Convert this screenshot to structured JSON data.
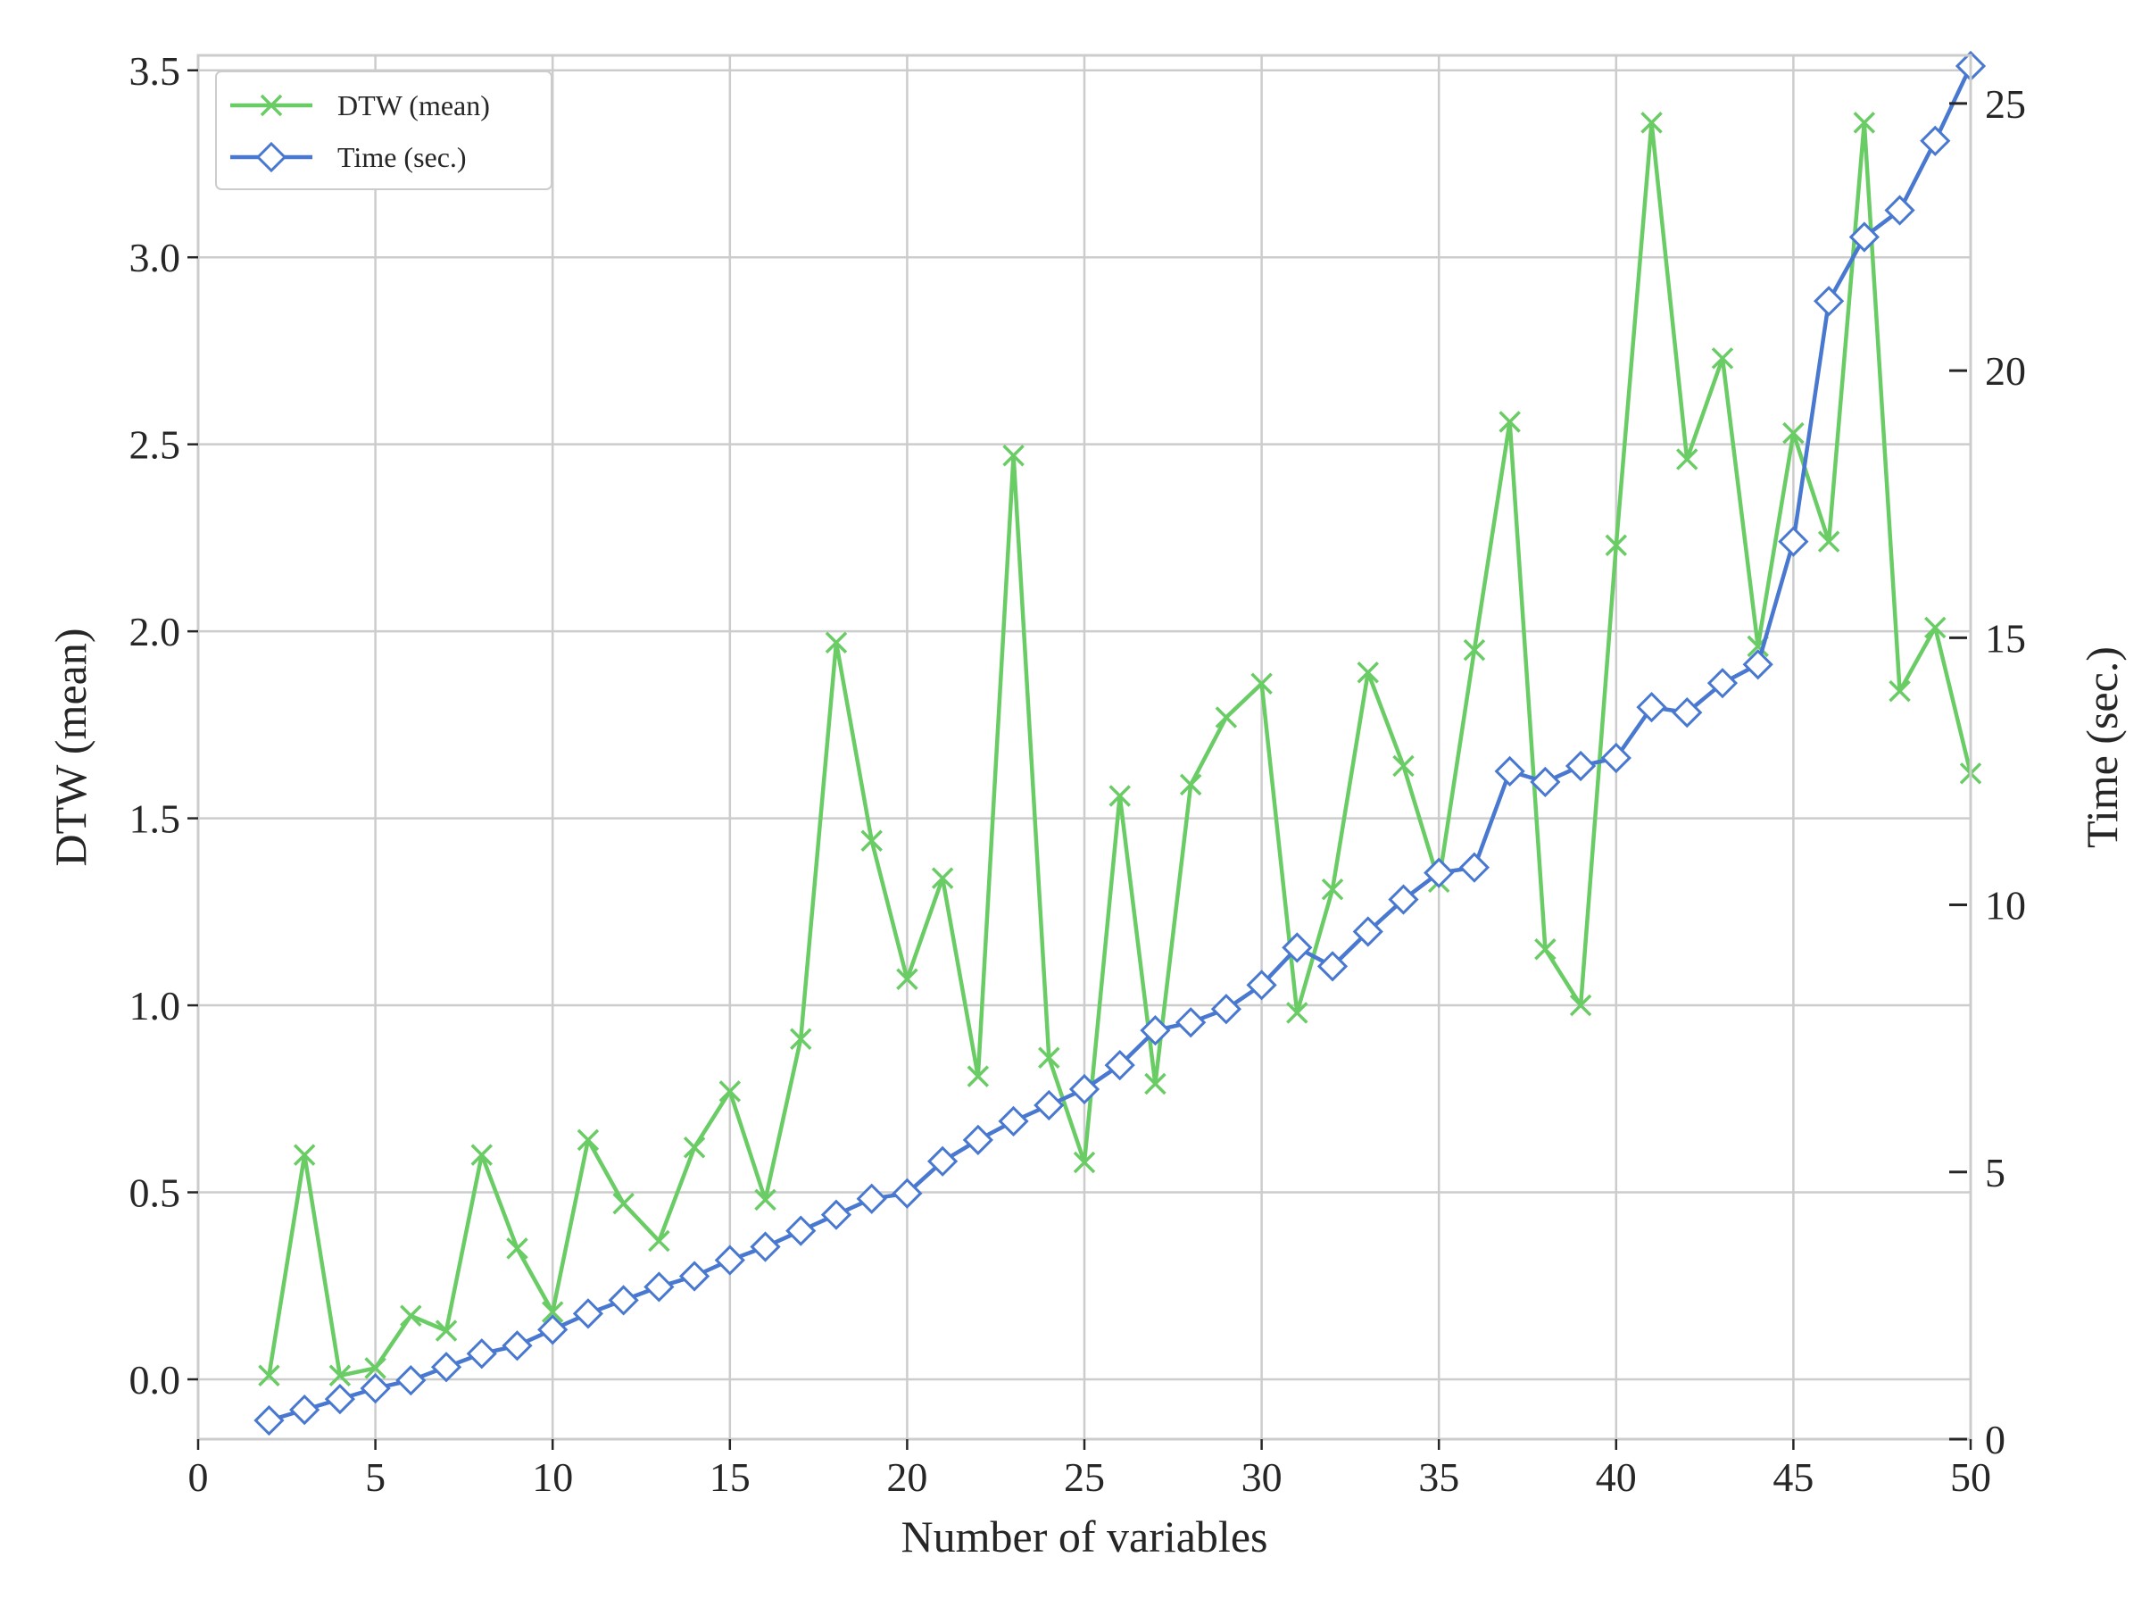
{
  "chart_data": {
    "type": "line",
    "title": "",
    "xlabel": "Number of variables",
    "ylabel": "DTW (mean)",
    "y2label": "Time (sec.)",
    "xlim": [
      0,
      50
    ],
    "ylim": [
      -0.16,
      3.54
    ],
    "y2lim": [
      0,
      25.9
    ],
    "xticks": [
      0,
      5,
      10,
      15,
      20,
      25,
      30,
      35,
      40,
      45,
      50
    ],
    "yticks": [
      0.0,
      0.5,
      1.0,
      1.5,
      2.0,
      2.5,
      3.0,
      3.5
    ],
    "y2ticks": [
      0,
      5,
      10,
      15,
      20,
      25
    ],
    "xtick_labels": [
      "0",
      "5",
      "10",
      "15",
      "20",
      "25",
      "30",
      "35",
      "40",
      "45",
      "50"
    ],
    "ytick_labels": [
      "0.0",
      "0.5",
      "1.0",
      "1.5",
      "2.0",
      "2.5",
      "3.0",
      "3.5"
    ],
    "y2tick_labels": [
      "0",
      "5",
      "10",
      "15",
      "20",
      "25"
    ],
    "grid": true,
    "legend_position": "top-left",
    "x": [
      2,
      3,
      4,
      5,
      6,
      7,
      8,
      9,
      10,
      11,
      12,
      13,
      14,
      15,
      16,
      17,
      18,
      19,
      20,
      21,
      22,
      23,
      24,
      25,
      26,
      27,
      28,
      29,
      30,
      31,
      32,
      33,
      34,
      35,
      36,
      37,
      38,
      39,
      40,
      41,
      42,
      43,
      44,
      45,
      46,
      47,
      48,
      49,
      50
    ],
    "series": [
      {
        "name": "DTW (mean)",
        "axis": "left",
        "color": "#6acc65",
        "marker": "x",
        "values": [
          0.01,
          0.6,
          0.01,
          0.03,
          0.17,
          0.13,
          0.6,
          0.35,
          0.18,
          0.64,
          0.47,
          0.37,
          0.62,
          0.77,
          0.48,
          0.91,
          1.97,
          1.44,
          1.07,
          1.34,
          0.81,
          2.47,
          0.86,
          0.58,
          1.56,
          0.79,
          1.59,
          1.77,
          1.86,
          0.98,
          1.31,
          1.89,
          1.64,
          1.33,
          1.95,
          2.56,
          1.15,
          1.0,
          2.23,
          3.36,
          2.46,
          2.73,
          1.96,
          2.53,
          2.24,
          3.36,
          1.84,
          2.01,
          1.62
        ]
      },
      {
        "name": "Time (sec.)",
        "axis": "right",
        "color": "#4878cf",
        "marker": "diamond",
        "values": [
          0.35,
          0.55,
          0.75,
          0.95,
          1.1,
          1.35,
          1.6,
          1.75,
          2.05,
          2.35,
          2.6,
          2.85,
          3.05,
          3.35,
          3.6,
          3.9,
          4.2,
          4.5,
          4.6,
          5.2,
          5.6,
          5.95,
          6.25,
          6.55,
          7.0,
          7.65,
          7.8,
          8.05,
          8.5,
          9.2,
          8.85,
          9.5,
          10.1,
          10.6,
          10.7,
          12.5,
          12.3,
          12.6,
          12.75,
          13.7,
          13.6,
          14.15,
          14.5,
          16.8,
          21.3,
          22.5,
          23.0,
          24.3,
          25.7
        ]
      }
    ]
  }
}
